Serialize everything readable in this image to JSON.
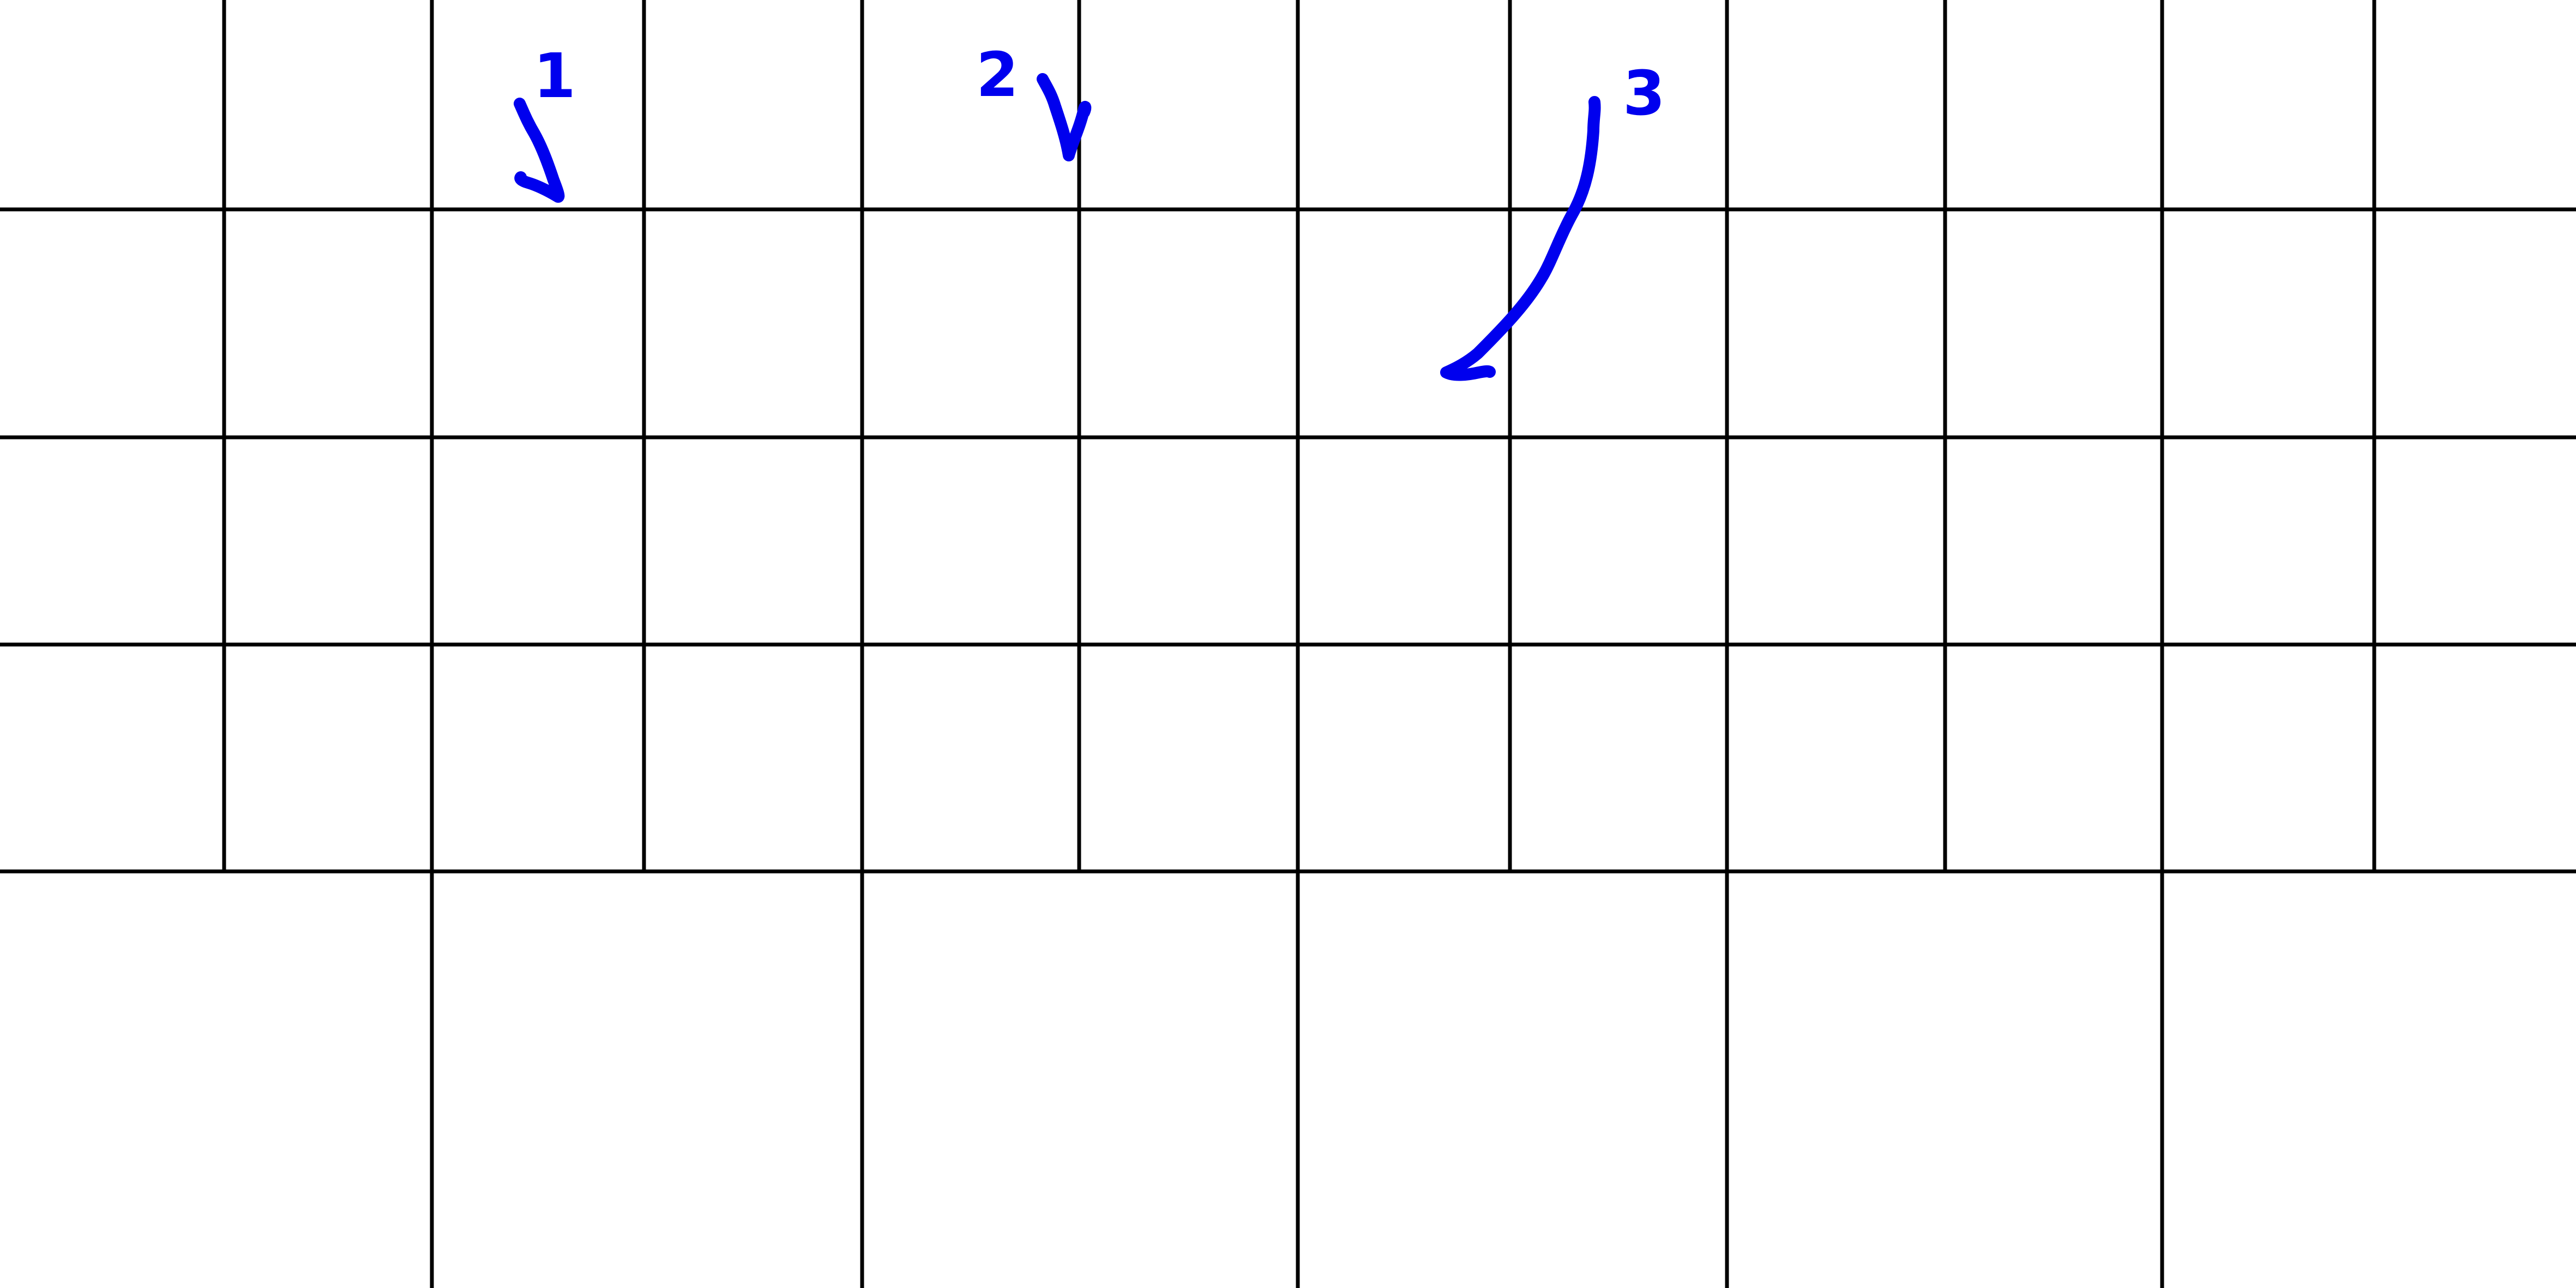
{
  "colors": {
    "background": "#ffffff",
    "grid": "#000000",
    "annotation": "#0000ee"
  },
  "annotations": [
    {
      "id": "1",
      "label": "1"
    },
    {
      "id": "2",
      "label": "2"
    },
    {
      "id": "3",
      "label": "3"
    }
  ]
}
